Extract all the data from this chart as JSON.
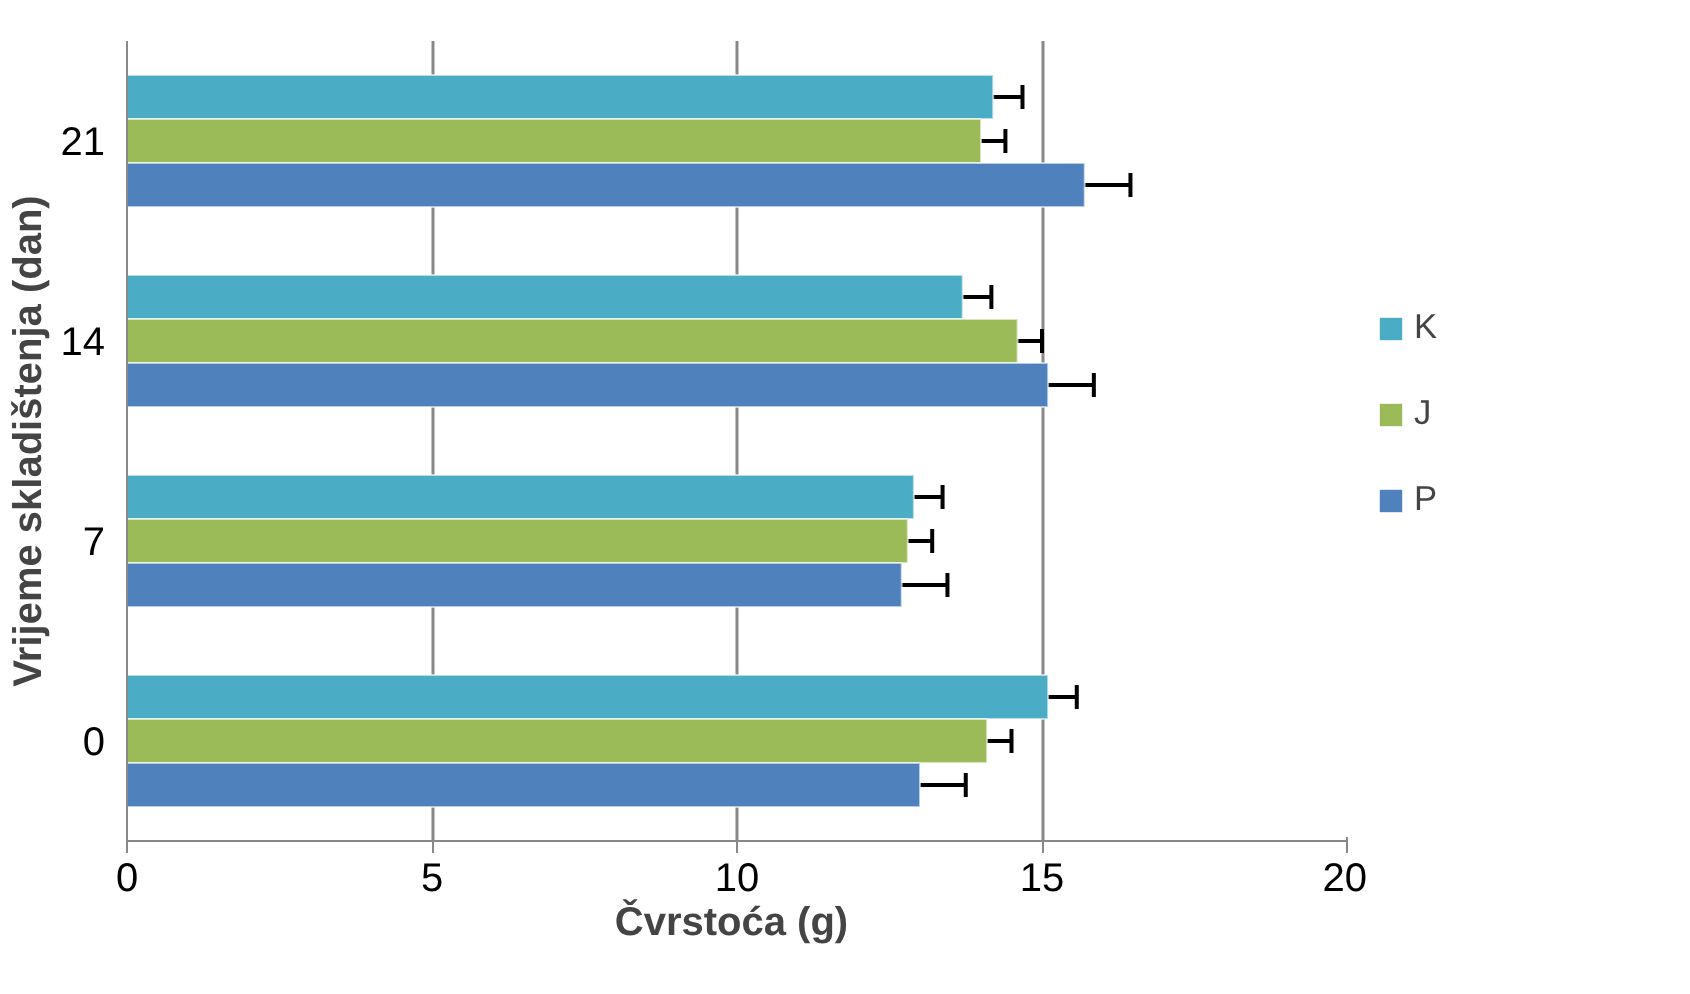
{
  "chart_data": {
    "type": "bar",
    "orientation": "horizontal",
    "xlabel": "Čvrstoća  (g)",
    "ylabel": "Vrijeme skladištenja (dan)",
    "categories": [
      "21",
      "14",
      "7",
      "0"
    ],
    "series": [
      {
        "name": "K",
        "color": "#4bacc6",
        "values": [
          14.2,
          13.7,
          12.9,
          15.1
        ],
        "errors": [
          0.48,
          0.47,
          0.47,
          0.47
        ]
      },
      {
        "name": "J",
        "color": "#9bbb59",
        "values": [
          14.0,
          14.6,
          12.8,
          14.1
        ],
        "errors": [
          0.4,
          0.4,
          0.4,
          0.4
        ]
      },
      {
        "name": "P",
        "color": "#4f81bd",
        "values": [
          15.7,
          15.1,
          12.7,
          13.0
        ],
        "errors": [
          0.75,
          0.75,
          0.75,
          0.75
        ]
      }
    ],
    "xlim": [
      0,
      20
    ],
    "xticks": [
      0,
      5,
      10,
      15,
      20
    ],
    "grid": "x",
    "legend": "right"
  }
}
